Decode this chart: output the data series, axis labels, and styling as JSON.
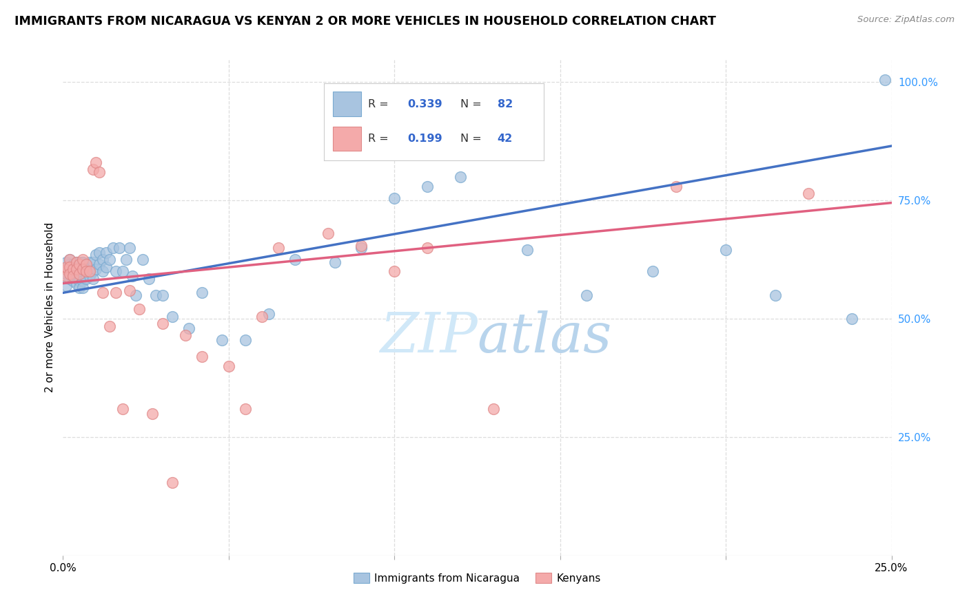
{
  "title": "IMMIGRANTS FROM NICARAGUA VS KENYAN 2 OR MORE VEHICLES IN HOUSEHOLD CORRELATION CHART",
  "source": "Source: ZipAtlas.com",
  "ylabel": "2 or more Vehicles in Household",
  "label1": "Immigrants from Nicaragua",
  "label2": "Kenyans",
  "blue_color": "#A8C4E0",
  "pink_color": "#F4AAAA",
  "line_blue": "#4472C4",
  "line_pink": "#E06080",
  "xlim": [
    0.0,
    0.25
  ],
  "ylim": [
    0.0,
    1.05
  ],
  "blue_line_x": [
    0.0,
    0.25
  ],
  "blue_line_y": [
    0.555,
    0.865
  ],
  "pink_line_x": [
    0.0,
    0.25
  ],
  "pink_line_y": [
    0.575,
    0.745
  ],
  "blue_x": [
    0.001,
    0.001,
    0.001,
    0.001,
    0.002,
    0.002,
    0.002,
    0.002,
    0.002,
    0.003,
    0.003,
    0.003,
    0.003,
    0.003,
    0.004,
    0.004,
    0.004,
    0.004,
    0.004,
    0.005,
    0.005,
    0.005,
    0.005,
    0.005,
    0.005,
    0.006,
    0.006,
    0.006,
    0.006,
    0.006,
    0.006,
    0.007,
    0.007,
    0.007,
    0.007,
    0.007,
    0.008,
    0.008,
    0.008,
    0.009,
    0.009,
    0.009,
    0.01,
    0.01,
    0.011,
    0.011,
    0.012,
    0.012,
    0.013,
    0.013,
    0.014,
    0.015,
    0.016,
    0.017,
    0.018,
    0.019,
    0.02,
    0.021,
    0.022,
    0.024,
    0.026,
    0.028,
    0.03,
    0.033,
    0.038,
    0.042,
    0.048,
    0.055,
    0.062,
    0.07,
    0.082,
    0.09,
    0.1,
    0.11,
    0.12,
    0.14,
    0.158,
    0.178,
    0.2,
    0.215,
    0.238,
    0.248
  ],
  "blue_y": [
    0.595,
    0.605,
    0.62,
    0.57,
    0.6,
    0.615,
    0.625,
    0.61,
    0.585,
    0.6,
    0.615,
    0.59,
    0.605,
    0.58,
    0.62,
    0.605,
    0.59,
    0.575,
    0.61,
    0.62,
    0.6,
    0.61,
    0.59,
    0.58,
    0.565,
    0.62,
    0.605,
    0.62,
    0.595,
    0.58,
    0.565,
    0.615,
    0.6,
    0.585,
    0.615,
    0.6,
    0.62,
    0.605,
    0.59,
    0.62,
    0.6,
    0.585,
    0.635,
    0.605,
    0.64,
    0.615,
    0.625,
    0.6,
    0.64,
    0.61,
    0.625,
    0.65,
    0.6,
    0.65,
    0.6,
    0.625,
    0.65,
    0.59,
    0.55,
    0.625,
    0.585,
    0.55,
    0.55,
    0.505,
    0.48,
    0.555,
    0.455,
    0.455,
    0.51,
    0.625,
    0.62,
    0.65,
    0.755,
    0.78,
    0.8,
    0.645,
    0.55,
    0.6,
    0.645,
    0.55,
    0.5,
    1.005
  ],
  "pink_x": [
    0.001,
    0.001,
    0.001,
    0.002,
    0.002,
    0.002,
    0.003,
    0.003,
    0.004,
    0.004,
    0.005,
    0.005,
    0.006,
    0.006,
    0.007,
    0.007,
    0.008,
    0.009,
    0.01,
    0.011,
    0.012,
    0.014,
    0.016,
    0.018,
    0.02,
    0.023,
    0.027,
    0.03,
    0.033,
    0.037,
    0.042,
    0.05,
    0.055,
    0.06,
    0.065,
    0.08,
    0.09,
    0.1,
    0.11,
    0.13,
    0.185,
    0.225
  ],
  "pink_y": [
    0.605,
    0.59,
    0.61,
    0.625,
    0.61,
    0.595,
    0.605,
    0.59,
    0.62,
    0.605,
    0.615,
    0.595,
    0.625,
    0.605,
    0.615,
    0.6,
    0.6,
    0.815,
    0.83,
    0.81,
    0.555,
    0.485,
    0.555,
    0.31,
    0.56,
    0.52,
    0.3,
    0.49,
    0.155,
    0.465,
    0.42,
    0.4,
    0.31,
    0.505,
    0.65,
    0.68,
    0.655,
    0.6,
    0.65,
    0.31,
    0.78,
    0.765
  ]
}
